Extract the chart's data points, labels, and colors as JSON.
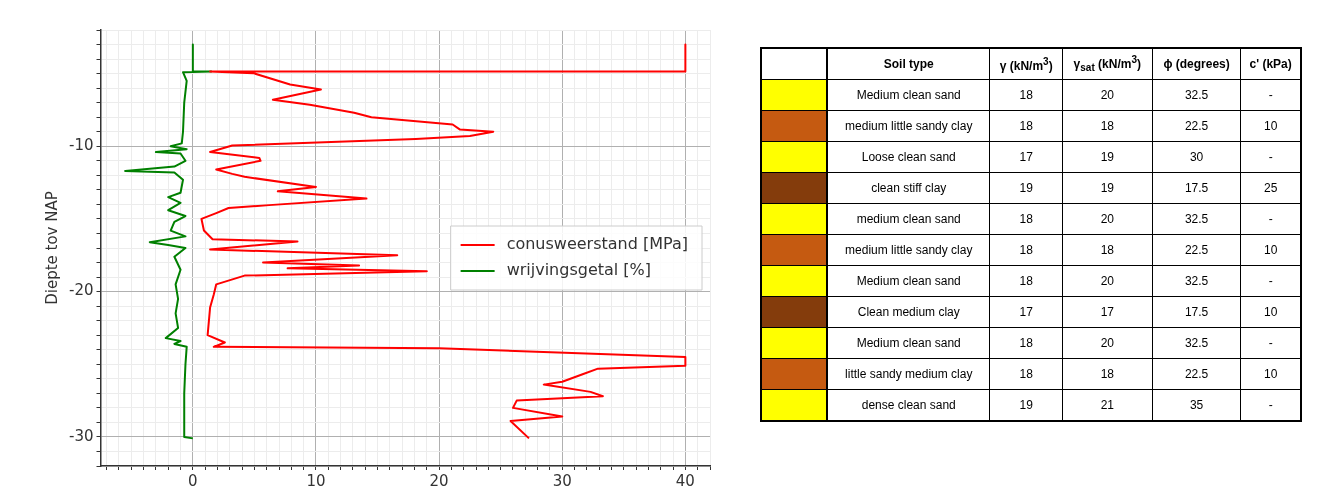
{
  "chart_data": [
    {
      "type": "line",
      "ylabel": "Diepte tov NAP",
      "xlim": [
        -7.5,
        42
      ],
      "ylim": [
        -32,
        -2
      ],
      "grid": true,
      "legend": "center right",
      "marker": "none",
      "line_style": "solid",
      "xticks": [
        {
          "value": -7,
          "label": null
        },
        {
          "value": -6,
          "label": null
        },
        {
          "value": -5,
          "label": null
        },
        {
          "value": -4,
          "label": null
        },
        {
          "value": -3,
          "label": null
        },
        {
          "value": -2,
          "label": null
        },
        {
          "value": -1,
          "label": null
        },
        0,
        {
          "value": 1,
          "label": null
        },
        {
          "value": 2,
          "label": null
        },
        {
          "value": 3,
          "label": null
        },
        {
          "value": 4,
          "label": null
        },
        {
          "value": 5,
          "label": null
        },
        {
          "value": 6,
          "label": null
        },
        {
          "value": 7,
          "label": null
        },
        {
          "value": 8,
          "label": null
        },
        {
          "value": 9,
          "label": null
        },
        10,
        {
          "value": 11,
          "label": null
        },
        {
          "value": 12,
          "label": null
        },
        {
          "value": 13,
          "label": null
        },
        {
          "value": 14,
          "label": null
        },
        {
          "value": 15,
          "label": null
        },
        {
          "value": 16,
          "label": null
        },
        {
          "value": 17,
          "label": null
        },
        {
          "value": 18,
          "label": null
        },
        {
          "value": 19,
          "label": null
        },
        20,
        {
          "value": 21,
          "label": null
        },
        {
          "value": 22,
          "label": null
        },
        {
          "value": 23,
          "label": null
        },
        {
          "value": 24,
          "label": null
        },
        {
          "value": 25,
          "label": null
        },
        {
          "value": 26,
          "label": null
        },
        {
          "value": 27,
          "label": null
        },
        {
          "value": 28,
          "label": null
        },
        {
          "value": 29,
          "label": null
        },
        30,
        {
          "value": 31,
          "label": null
        },
        {
          "value": 32,
          "label": null
        },
        {
          "value": 33,
          "label": null
        },
        {
          "value": 34,
          "label": null
        },
        {
          "value": 35,
          "label": null
        },
        {
          "value": 36,
          "label": null
        },
        {
          "value": 37,
          "label": null
        },
        {
          "value": 38,
          "label": null
        },
        {
          "value": 39,
          "label": null
        },
        40,
        {
          "value": 41,
          "label": null
        },
        {
          "value": 42,
          "label": null
        }
      ],
      "yticks": [
        {
          "value": -32,
          "label": null
        },
        {
          "value": -31,
          "label": null
        },
        -30,
        {
          "value": -29,
          "label": null
        },
        {
          "value": -28,
          "label": null
        },
        {
          "value": -27,
          "label": null
        },
        {
          "value": -26,
          "label": null
        },
        {
          "value": -25,
          "label": null
        },
        {
          "value": -24,
          "label": null
        },
        {
          "value": -23,
          "label": null
        },
        {
          "value": -22,
          "label": null
        },
        {
          "value": -21,
          "label": null
        },
        -20,
        {
          "value": -19,
          "label": null
        },
        {
          "value": -18,
          "label": null
        },
        {
          "value": -17,
          "label": null
        },
        {
          "value": -16,
          "label": null
        },
        {
          "value": -15,
          "label": null
        },
        {
          "value": -14,
          "label": null
        },
        {
          "value": -13,
          "label": null
        },
        {
          "value": -12,
          "label": null
        },
        {
          "value": -11,
          "label": null
        },
        -10,
        {
          "value": -9,
          "label": null
        },
        {
          "value": -8,
          "label": null
        },
        {
          "value": -7,
          "label": null
        },
        {
          "value": -6,
          "label": null
        },
        {
          "value": -5,
          "label": null
        },
        {
          "value": -4,
          "label": null
        },
        {
          "value": -3,
          "label": null
        },
        {
          "value": -2,
          "label": null
        }
      ],
      "series": [
        {
          "name": "conusweerstand [MPa]",
          "color": "#ff0000",
          "x": [
            40,
            40,
            1.4,
            4.9,
            7.9,
            10.4,
            6.5,
            9.5,
            13.1,
            14.5,
            21.1,
            21.7,
            24.4,
            22.5,
            18.1,
            3.2,
            1.4,
            5.4,
            5.5,
            1.9,
            3.2,
            4.2,
            10,
            6.9,
            14.1,
            6.2,
            2.9,
            1.9,
            0.7,
            0.9,
            1.6,
            8.5,
            1.4,
            16.6,
            5.7,
            13.5,
            7.7,
            19,
            4.2,
            1.9,
            1.7,
            1.4,
            1.2,
            2.6,
            1.7,
            20,
            40,
            40,
            32.9,
            31.6,
            30,
            28.5,
            32.3,
            33.3,
            26.3,
            26,
            30,
            25.8,
            27.3
          ],
          "values": [
            -3,
            -4.85,
            -4.85,
            -4.97,
            -5.75,
            -6.1,
            -6.8,
            -7.15,
            -7.7,
            -8,
            -8.5,
            -8.85,
            -9,
            -9.3,
            -9.5,
            -9.95,
            -10.4,
            -10.8,
            -11,
            -11.6,
            -11.9,
            -12.1,
            -12.8,
            -13.1,
            -13.6,
            -14.05,
            -14.25,
            -14.6,
            -15,
            -15.8,
            -16.4,
            -16.55,
            -17.1,
            -17.5,
            -18,
            -18.2,
            -18.4,
            -18.6,
            -18.9,
            -19.5,
            -20.2,
            -21.1,
            -23,
            -23.5,
            -23.8,
            -23.9,
            -24.5,
            -25.1,
            -25.3,
            -25.7,
            -26.2,
            -26.4,
            -26.9,
            -27.2,
            -27.5,
            -28,
            -28.6,
            -28.9,
            -30.1
          ]
        },
        {
          "name": "wrijvingsgetal [%]",
          "color": "#008000",
          "x": [
            0,
            0,
            1.5,
            -0.8,
            -0.5,
            -0.7,
            -0.8,
            -0.9,
            -1.8,
            -0.5,
            -3,
            -1,
            -0.6,
            -1.5,
            -5.5,
            -1.5,
            -0.8,
            -1,
            -2,
            -1,
            -2,
            -0.6,
            -1.5,
            -1.8,
            -0.6,
            -3.5,
            -2,
            -0.6,
            -1.5,
            -1,
            -1.4,
            -1.2,
            -1.4,
            -1.2,
            -2.2,
            -1,
            -1.5,
            -0.5,
            -0.6,
            -0.7,
            -0.7,
            0
          ],
          "values": [
            -3,
            -4.85,
            -4.85,
            -4.9,
            -5.5,
            -7,
            -9,
            -9.8,
            -10,
            -10.2,
            -10.4,
            -10.5,
            -11,
            -11.4,
            -11.7,
            -11.8,
            -12.3,
            -13.2,
            -13.5,
            -13.9,
            -14.4,
            -14.8,
            -15.2,
            -15.8,
            -16.2,
            -16.6,
            -16.8,
            -17,
            -17.6,
            -18.5,
            -19.5,
            -20.5,
            -21.5,
            -22.5,
            -23.2,
            -23.4,
            -23.6,
            -23.8,
            -25,
            -27,
            -30,
            -30.1
          ]
        }
      ]
    },
    {
      "type": "other",
      "xlabel": "Soil type",
      "data_labels": true,
      "categories": [
        "Medium clean sand",
        "medium little sandy clay",
        "Loose clean sand",
        "clean stiff clay",
        "medium clean sand",
        "medium little sandy clay",
        "Medium clean sand",
        "Clean medium clay",
        "Medium clean sand",
        "little sandy medium clay",
        "dense clean sand"
      ],
      "colors": [
        "#ffff00",
        "#c55a11",
        "#ffff00",
        "#843c0c",
        "#ffff00",
        "#c55a11",
        "#ffff00",
        "#843c0c",
        "#ffff00",
        "#c55a11",
        "#ffff00"
      ],
      "series": [
        {
          "name": "γ (kN/m$^{3}$)",
          "values": [
            18,
            18,
            17,
            19,
            18,
            18,
            18,
            17,
            18,
            18,
            19
          ]
        },
        {
          "name": "γ$_{sat}$ (kN/m$^{3}$)",
          "values": [
            20,
            18,
            19,
            19,
            20,
            18,
            20,
            17,
            20,
            18,
            21
          ]
        },
        {
          "name": "ϕ (degrees)",
          "values": [
            32.5,
            22.5,
            30,
            17.5,
            32.5,
            22.5,
            32.5,
            17.5,
            32.5,
            22.5,
            35
          ]
        },
        {
          "name": "c' (kPa)",
          "values": [
            null,
            null,
            null,
            null,
            null,
            null,
            null,
            null,
            null,
            null,
            null
          ],
          "value_labels": [
            "-",
            "10",
            "-",
            "25",
            "-",
            "10",
            "-",
            "10",
            "-",
            "10",
            "-"
          ]
        }
      ]
    }
  ]
}
